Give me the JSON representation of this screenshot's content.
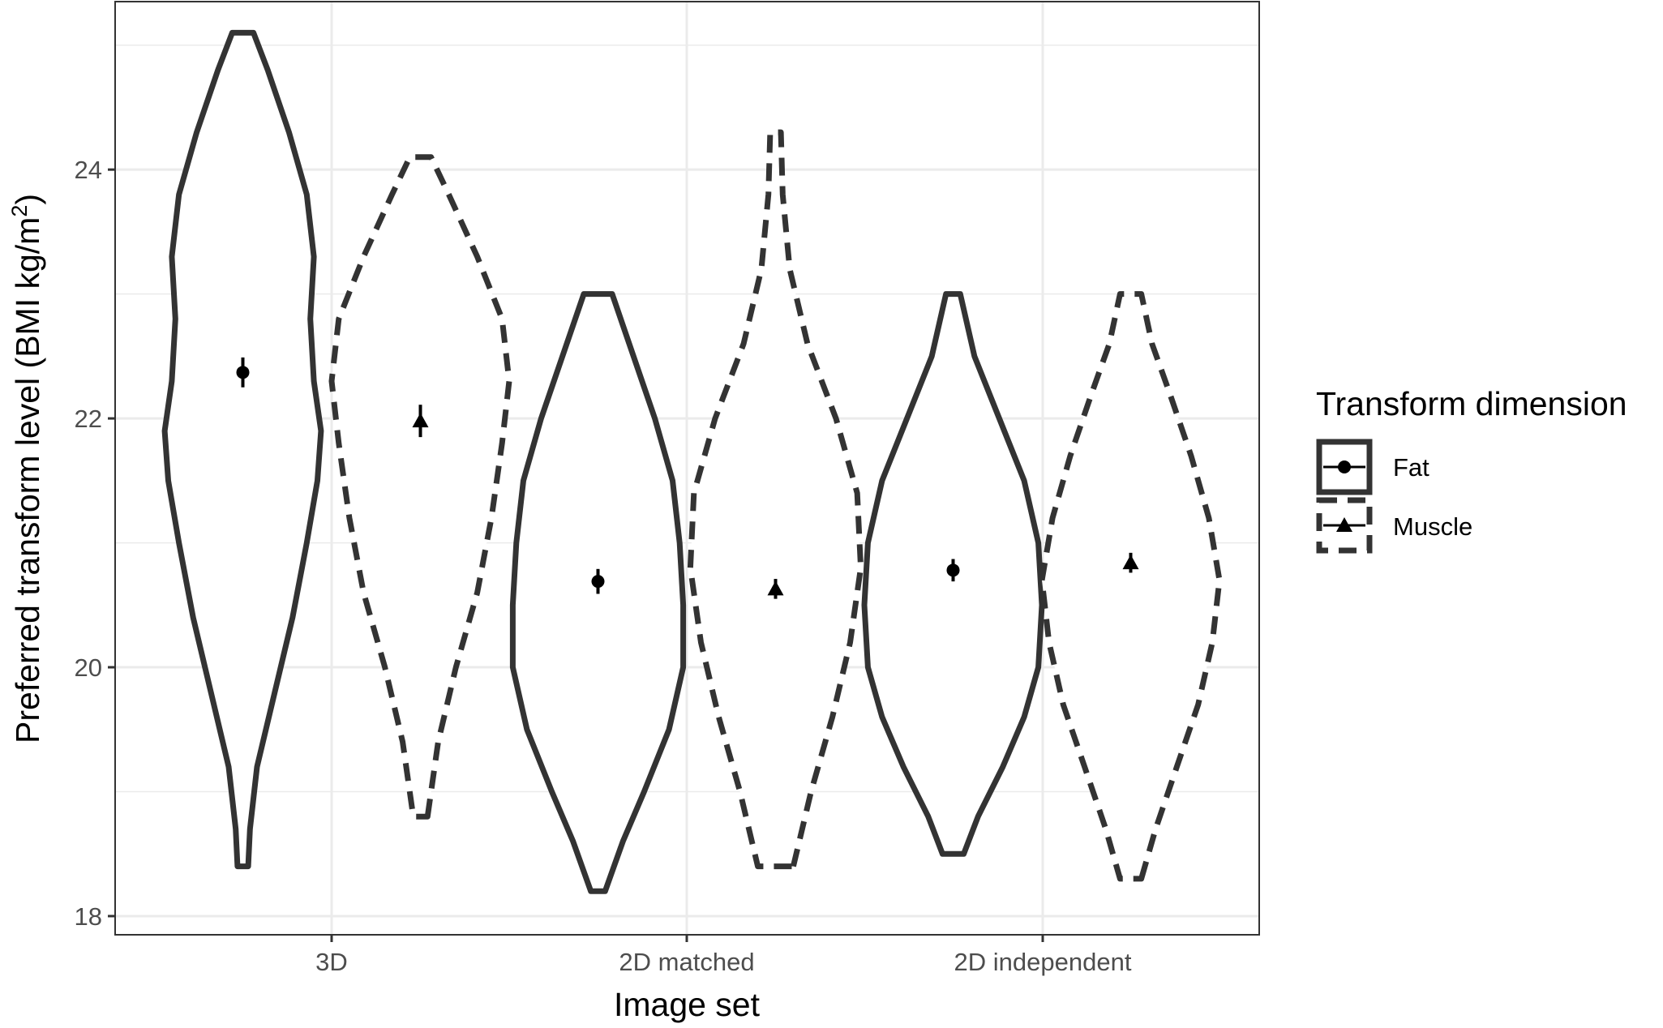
{
  "chart_data": {
    "type": "violin",
    "categories": [
      "3D",
      "2D matched",
      "2D independent"
    ],
    "xlabel": "Image set",
    "ylabel": "Preferred transform level (BMI kg/m²)",
    "ylabel_main": "Preferred transform level (BMI kg/m",
    "ylabel_sup": "2",
    "ylabel_end": ")",
    "ylim": [
      17.85,
      25.35
    ],
    "yticks": [
      18,
      20,
      22,
      24
    ],
    "grid": true,
    "legend": {
      "title": "Transform dimension",
      "position": "right",
      "items": [
        {
          "label": "Fat",
          "marker": "circle",
          "line": "solid"
        },
        {
          "label": "Muscle",
          "marker": "triangle",
          "line": "dashed"
        }
      ]
    },
    "series": [
      {
        "name": "Fat",
        "marker": "circle",
        "line": "solid",
        "mean": [
          22.37,
          20.69,
          20.78
        ],
        "error": [
          0.12,
          0.1,
          0.09
        ],
        "violins": [
          {
            "y": [
              18.4,
              18.7,
              19.2,
              19.8,
              20.4,
              21.0,
              21.5,
              21.9,
              22.3,
              22.8,
              23.3,
              23.8,
              24.3,
              24.8,
              25.1
            ],
            "half_width": [
              0.015,
              0.02,
              0.04,
              0.09,
              0.14,
              0.18,
              0.21,
              0.22,
              0.2,
              0.19,
              0.2,
              0.18,
              0.13,
              0.07,
              0.03
            ]
          },
          {
            "y": [
              18.2,
              18.6,
              19.0,
              19.5,
              20.0,
              20.5,
              21.0,
              21.5,
              22.0,
              22.5,
              23.0
            ],
            "half_width": [
              0.02,
              0.07,
              0.13,
              0.2,
              0.24,
              0.24,
              0.23,
              0.21,
              0.16,
              0.1,
              0.04
            ]
          },
          {
            "y": [
              18.5,
              18.8,
              19.2,
              19.6,
              20.0,
              20.5,
              21.0,
              21.5,
              22.0,
              22.5,
              23.0
            ],
            "half_width": [
              0.03,
              0.07,
              0.14,
              0.2,
              0.24,
              0.25,
              0.24,
              0.2,
              0.13,
              0.06,
              0.02
            ]
          }
        ]
      },
      {
        "name": "Muscle",
        "marker": "triangle",
        "line": "dashed",
        "mean": [
          21.98,
          20.63,
          20.84
        ],
        "error": [
          0.13,
          0.08,
          0.08
        ],
        "violins": [
          {
            "y": [
              18.8,
              19.4,
              20.0,
              20.6,
              21.2,
              21.8,
              22.3,
              22.8,
              23.3,
              23.8,
              24.1
            ],
            "half_width": [
              0.02,
              0.05,
              0.1,
              0.16,
              0.2,
              0.23,
              0.25,
              0.23,
              0.16,
              0.08,
              0.03
            ]
          },
          {
            "y": [
              18.4,
              19.0,
              19.6,
              20.2,
              20.8,
              21.4,
              22.0,
              22.6,
              23.2,
              23.8,
              24.3
            ],
            "half_width": [
              0.05,
              0.1,
              0.16,
              0.21,
              0.24,
              0.23,
              0.17,
              0.09,
              0.04,
              0.02,
              0.015
            ]
          },
          {
            "y": [
              18.3,
              18.7,
              19.2,
              19.7,
              20.2,
              20.7,
              21.2,
              21.7,
              22.2,
              22.6,
              23.0
            ],
            "half_width": [
              0.03,
              0.07,
              0.13,
              0.19,
              0.23,
              0.25,
              0.22,
              0.17,
              0.11,
              0.06,
              0.03
            ]
          }
        ]
      }
    ]
  }
}
